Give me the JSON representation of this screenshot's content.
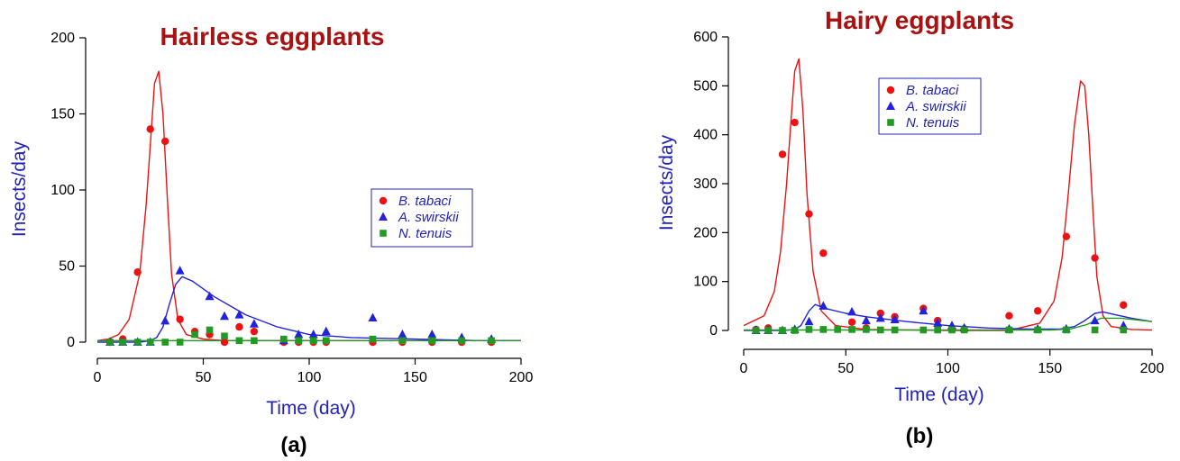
{
  "colors": {
    "title": "#aa1111",
    "axis_label": "#2222bb",
    "b_tabaci": "#ee1111",
    "a_swirskii": "#2222dd",
    "n_tenuis": "#229922"
  },
  "chart_data": [
    {
      "type": "scatter",
      "panel_label": "(a)",
      "title": "Hairless eggplants",
      "xlabel": "Time (day)",
      "ylabel": "Insects/day",
      "xlim": [
        0,
        200
      ],
      "ylim": [
        0,
        200
      ],
      "xticks": [
        "0",
        "50",
        "100",
        "150",
        "200"
      ],
      "yticks": [
        "0",
        "50",
        "100",
        "150",
        "200"
      ],
      "legend_position": "center-right",
      "series": [
        {
          "name": "B. tabaci",
          "marker": "circle",
          "color": "#ee1111",
          "points": [
            [
              6,
              0
            ],
            [
              12,
              2
            ],
            [
              19,
              46
            ],
            [
              25,
              140
            ],
            [
              32,
              132
            ],
            [
              39,
              15
            ],
            [
              46,
              7
            ],
            [
              53,
              5
            ],
            [
              60,
              0
            ],
            [
              67,
              10
            ],
            [
              74,
              7
            ],
            [
              88,
              0
            ],
            [
              95,
              0
            ],
            [
              102,
              0
            ],
            [
              108,
              0
            ],
            [
              130,
              0
            ],
            [
              144,
              0
            ],
            [
              158,
              0
            ],
            [
              172,
              0
            ],
            [
              186,
              0
            ]
          ],
          "model_x": [
            0,
            5,
            10,
            15,
            20,
            23,
            25,
            27,
            29,
            31,
            33,
            35,
            38,
            42,
            50,
            60,
            80,
            120,
            160,
            200
          ],
          "model_y": [
            1,
            2,
            5,
            15,
            45,
            90,
            130,
            170,
            178,
            150,
            95,
            45,
            15,
            5,
            2,
            1,
            1,
            1,
            1,
            1
          ]
        },
        {
          "name": "A. swirskii",
          "marker": "triangle",
          "color": "#2222dd",
          "points": [
            [
              6,
              0
            ],
            [
              12,
              0
            ],
            [
              19,
              0
            ],
            [
              25,
              0
            ],
            [
              32,
              14
            ],
            [
              39,
              47
            ],
            [
              53,
              30
            ],
            [
              60,
              17
            ],
            [
              67,
              18
            ],
            [
              74,
              12
            ],
            [
              88,
              1
            ],
            [
              95,
              5
            ],
            [
              102,
              5
            ],
            [
              108,
              7
            ],
            [
              130,
              16
            ],
            [
              144,
              5
            ],
            [
              158,
              5
            ],
            [
              172,
              3
            ],
            [
              186,
              2
            ]
          ],
          "model_x": [
            0,
            10,
            20,
            25,
            28,
            31,
            34,
            37,
            40,
            45,
            55,
            70,
            85,
            100,
            120,
            150,
            180,
            200
          ],
          "model_y": [
            0,
            0,
            0,
            1,
            3,
            10,
            25,
            38,
            43,
            40,
            30,
            18,
            10,
            5,
            3,
            2,
            1,
            1
          ]
        },
        {
          "name": "N. tenuis",
          "marker": "square",
          "color": "#229922",
          "points": [
            [
              6,
              0
            ],
            [
              12,
              0
            ],
            [
              19,
              0
            ],
            [
              25,
              0
            ],
            [
              32,
              0
            ],
            [
              39,
              0
            ],
            [
              46,
              5
            ],
            [
              53,
              8
            ],
            [
              60,
              4
            ],
            [
              67,
              1
            ],
            [
              74,
              1
            ],
            [
              88,
              2
            ],
            [
              95,
              1
            ],
            [
              102,
              1
            ],
            [
              108,
              1
            ],
            [
              130,
              2
            ],
            [
              144,
              1
            ],
            [
              158,
              1
            ],
            [
              172,
              1
            ],
            [
              186,
              1
            ]
          ],
          "model_x": [
            0,
            50,
            100,
            150,
            200
          ],
          "model_y": [
            1,
            1,
            1,
            1,
            1
          ]
        }
      ]
    },
    {
      "type": "scatter",
      "panel_label": "(b)",
      "title": "Hairy eggplants",
      "xlabel": "Time (day)",
      "ylabel": "Insects/day",
      "xlim": [
        0,
        200
      ],
      "ylim": [
        0,
        600
      ],
      "xticks": [
        "0",
        "50",
        "100",
        "150",
        "200"
      ],
      "yticks": [
        "0",
        "100",
        "200",
        "300",
        "400",
        "500",
        "600"
      ],
      "legend_position": "top-center",
      "series": [
        {
          "name": "B. tabaci",
          "marker": "circle",
          "color": "#ee1111",
          "points": [
            [
              6,
              2
            ],
            [
              12,
              5
            ],
            [
              19,
              360
            ],
            [
              25,
              425
            ],
            [
              32,
              238
            ],
            [
              39,
              158
            ],
            [
              53,
              17
            ],
            [
              60,
              5
            ],
            [
              67,
              35
            ],
            [
              74,
              28
            ],
            [
              88,
              45
            ],
            [
              95,
              20
            ],
            [
              102,
              5
            ],
            [
              108,
              3
            ],
            [
              130,
              30
            ],
            [
              144,
              40
            ],
            [
              158,
              192
            ],
            [
              172,
              148
            ],
            [
              186,
              52
            ]
          ],
          "model_x": [
            0,
            10,
            15,
            18,
            21,
            23,
            25,
            27,
            29,
            31,
            34,
            38,
            45,
            60,
            100,
            130,
            145,
            152,
            156,
            159,
            162,
            165,
            167,
            169,
            171,
            173,
            176,
            180,
            190,
            200
          ],
          "model_y": [
            10,
            30,
            80,
            160,
            300,
            420,
            530,
            555,
            450,
            280,
            120,
            40,
            10,
            2,
            0,
            0,
            15,
            60,
            150,
            280,
            420,
            510,
            500,
            400,
            250,
            110,
            30,
            8,
            2,
            1
          ]
        },
        {
          "name": "A. swirskii",
          "marker": "triangle",
          "color": "#2222dd",
          "points": [
            [
              6,
              0
            ],
            [
              12,
              0
            ],
            [
              19,
              0
            ],
            [
              25,
              2
            ],
            [
              32,
              18
            ],
            [
              39,
              50
            ],
            [
              53,
              38
            ],
            [
              60,
              20
            ],
            [
              67,
              25
            ],
            [
              74,
              22
            ],
            [
              88,
              40
            ],
            [
              95,
              15
            ],
            [
              102,
              10
            ],
            [
              108,
              5
            ],
            [
              130,
              3
            ],
            [
              144,
              3
            ],
            [
              158,
              3
            ],
            [
              172,
              20
            ],
            [
              186,
              10
            ]
          ],
          "model_x": [
            0,
            20,
            25,
            28,
            32,
            35,
            40,
            50,
            60,
            80,
            100,
            120,
            140,
            155,
            162,
            167,
            172,
            176,
            182,
            190,
            200
          ],
          "model_y": [
            0,
            0,
            2,
            10,
            40,
            53,
            45,
            35,
            28,
            18,
            10,
            5,
            3,
            3,
            8,
            20,
            35,
            38,
            32,
            25,
            18
          ]
        },
        {
          "name": "N. tenuis",
          "marker": "square",
          "color": "#229922",
          "points": [
            [
              6,
              0
            ],
            [
              12,
              0
            ],
            [
              19,
              0
            ],
            [
              25,
              0
            ],
            [
              32,
              2
            ],
            [
              39,
              2
            ],
            [
              46,
              2
            ],
            [
              53,
              2
            ],
            [
              60,
              2
            ],
            [
              67,
              1
            ],
            [
              74,
              1
            ],
            [
              88,
              1
            ],
            [
              95,
              1
            ],
            [
              102,
              1
            ],
            [
              108,
              1
            ],
            [
              130,
              1
            ],
            [
              144,
              1
            ],
            [
              158,
              1
            ],
            [
              172,
              1
            ],
            [
              186,
              1
            ]
          ],
          "model_x": [
            0,
            50,
            100,
            150,
            160,
            168,
            175,
            185,
            200
          ],
          "model_y": [
            1,
            1,
            1,
            1,
            3,
            12,
            25,
            25,
            18
          ]
        }
      ]
    }
  ]
}
